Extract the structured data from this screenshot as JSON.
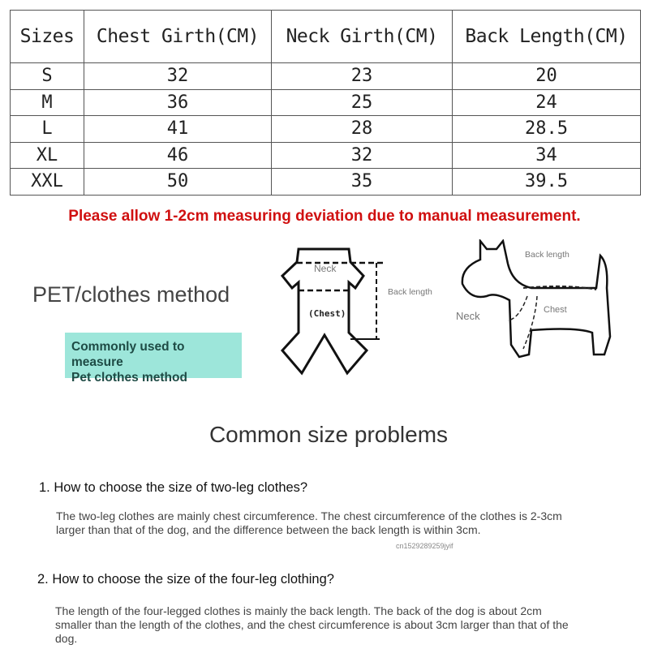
{
  "table": {
    "headers": [
      "Sizes",
      "Chest Girth(CM)",
      "Neck Girth(CM)",
      "Back Length(CM)"
    ],
    "rows": [
      [
        "S",
        "32",
        "23",
        "20"
      ],
      [
        "M",
        "36",
        "25",
        "24"
      ],
      [
        "L",
        "41",
        "28",
        "28.5"
      ],
      [
        "XL",
        "46",
        "32",
        "34"
      ],
      [
        "XXL",
        "50",
        "35",
        "39.5"
      ]
    ]
  },
  "note": "Please allow 1-2cm measuring deviation due to manual measurement.",
  "method": {
    "title": "PET/clothes method",
    "badge_line1": "Commonly used to measure",
    "badge_line2": "Pet clothes method",
    "clothes_labels": {
      "neck": "Neck",
      "chest": "(Chest)",
      "back": "Back length"
    },
    "dog_labels": {
      "back": "Back length",
      "neck": "Neck",
      "chest": "Chest"
    }
  },
  "faq": {
    "title": "Common size problems",
    "items": [
      {
        "q": "1. How to choose the size of two-leg clothes?",
        "a": "The two-leg clothes are mainly chest circumference. The chest circumference of the clothes is 2-3cm larger than that of the dog, and the difference between the back length is within 3cm."
      },
      {
        "q": "2. How to choose the size of the four-leg clothing?",
        "a": "The length of the four-legged clothes is mainly the back length. The back of the dog is about 2cm smaller than the length of the clothes, and the chest circumference is about 3cm larger than that of the dog."
      }
    ],
    "watermark": "cn1529289259jyif"
  }
}
